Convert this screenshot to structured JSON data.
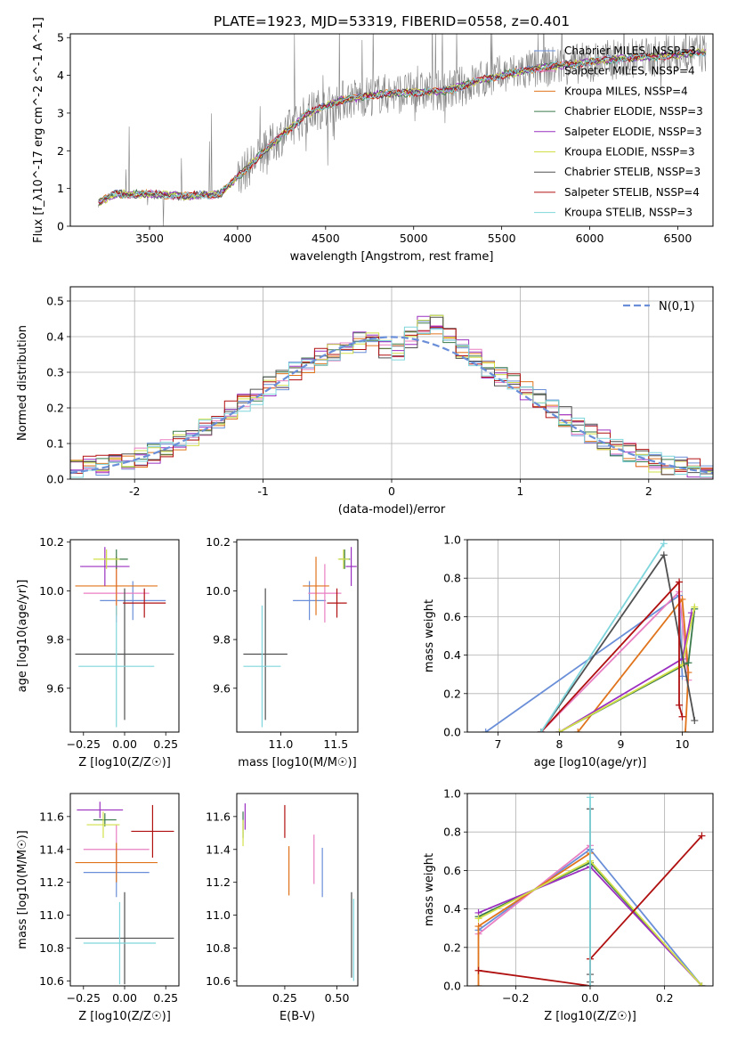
{
  "title": "PLATE=1923, MJD=53319, FIBERID=0558, z=0.401",
  "models": [
    {
      "name": "Chabrier MILES, N$_{SSP}$=3",
      "color": "#6a8fd8"
    },
    {
      "name": "Salpeter MILES, N$_{SSP}$=4",
      "color": "#e87fc2"
    },
    {
      "name": "Kroupa MILES, N$_{SSP}$=4",
      "color": "#e0741c"
    },
    {
      "name": "Chabrier ELODIE, N$_{SSP}$=3",
      "color": "#3a7a4a"
    },
    {
      "name": "Salpeter ELODIE, N$_{SSP}$=3",
      "color": "#9b30c0"
    },
    {
      "name": "Kroupa ELODIE, N$_{SSP}$=3",
      "color": "#d2e048"
    },
    {
      "name": "Chabrier STELIB, N$_{SSP}$=3",
      "color": "#505050"
    },
    {
      "name": "Salpeter STELIB, N$_{SSP}$=4",
      "color": "#b01010"
    },
    {
      "name": "Kroupa STELIB, N$_{SSP}$=3",
      "color": "#7fd6dc"
    }
  ],
  "chart_data": [
    {
      "id": "spectrum",
      "type": "line",
      "xlabel": "wavelength [Angstrom, rest frame]",
      "ylabel": "Flux [f_λ10^-17 erg cm^-2 s^-1 A^-1]",
      "xlim": [
        3050,
        6700
      ],
      "ylim": [
        0,
        5.1
      ],
      "xticks": [
        3500,
        4000,
        4500,
        5000,
        5500,
        6000,
        6500
      ],
      "yticks": [
        0,
        1,
        2,
        3,
        4,
        5
      ],
      "data_color": "#808080",
      "continuum": {
        "x": [
          3200,
          3300,
          3500,
          3700,
          3900,
          4000,
          4200,
          4400,
          4600,
          4800,
          5000,
          5200,
          5400,
          5600,
          5800,
          6000,
          6200,
          6400,
          6600
        ],
        "y": [
          0.6,
          0.85,
          0.85,
          0.8,
          0.85,
          1.3,
          2.2,
          3.0,
          3.35,
          3.5,
          3.55,
          3.6,
          3.9,
          4.1,
          4.25,
          4.35,
          4.45,
          4.5,
          4.6
        ]
      }
    },
    {
      "id": "residuals",
      "type": "line",
      "xlabel": "(data-model)/error",
      "ylabel": "Normed distribution",
      "xlim": [
        -2.5,
        2.5
      ],
      "ylim": [
        0,
        0.54
      ],
      "xticks": [
        -2,
        -1,
        0,
        1,
        2
      ],
      "yticks": [
        0.0,
        0.1,
        0.2,
        0.3,
        0.4,
        0.5
      ],
      "normal_label": "N(0,1)",
      "normal_color": "#6a8fd8",
      "bin_width": 0.1,
      "shape_x": [
        -2.5,
        -2.0,
        -1.5,
        -1.0,
        -0.6,
        -0.3,
        -0.1,
        0.0,
        0.1,
        0.3,
        0.5,
        0.7,
        1.0,
        1.5,
        2.0,
        2.5
      ],
      "shape_y": [
        0.03,
        0.05,
        0.13,
        0.25,
        0.33,
        0.38,
        0.4,
        0.34,
        0.38,
        0.45,
        0.38,
        0.32,
        0.26,
        0.14,
        0.05,
        0.02
      ]
    },
    {
      "id": "age_vs_Z",
      "type": "scatter",
      "xlabel": "Z [log10(Z/Z☉)]",
      "ylabel": "age [log10(age/yr)]",
      "xlim": [
        -0.33,
        0.33
      ],
      "ylim": [
        9.42,
        10.21
      ],
      "xticks": [
        -0.25,
        0.0,
        0.25
      ],
      "yticks": [
        9.6,
        9.8,
        10.0,
        10.2
      ],
      "xticklabels": [
        "−0.25",
        "0.00",
        "0.25"
      ],
      "yticklabels": [
        "9.6",
        "9.8",
        "10.0",
        "10.2"
      ],
      "points": [
        {
          "m": 0,
          "x": 0.05,
          "y": 9.96,
          "ex": 0.2,
          "ey": 0.08
        },
        {
          "m": 1,
          "x": -0.05,
          "y": 9.99,
          "ex": 0.2,
          "ey": 0.12
        },
        {
          "m": 2,
          "x": -0.05,
          "y": 10.02,
          "ex": 0.25,
          "ey": 0.12
        },
        {
          "m": 3,
          "x": -0.05,
          "y": 10.13,
          "ex": 0.07,
          "ey": 0.04
        },
        {
          "m": 4,
          "x": -0.12,
          "y": 10.1,
          "ex": 0.15,
          "ey": 0.08
        },
        {
          "m": 5,
          "x": -0.11,
          "y": 10.13,
          "ex": 0.08,
          "ey": 0.04
        },
        {
          "m": 6,
          "x": 0.0,
          "y": 9.74,
          "ex": 0.3,
          "ey": 0.27
        },
        {
          "m": 7,
          "x": 0.12,
          "y": 9.95,
          "ex": 0.13,
          "ey": 0.06
        },
        {
          "m": 8,
          "x": -0.05,
          "y": 9.69,
          "ex": 0.23,
          "ey": 0.25
        }
      ]
    },
    {
      "id": "age_vs_mass",
      "type": "scatter",
      "xlabel": "mass [log10(M/M☉)]",
      "ylabel": "",
      "xlim": [
        10.6,
        11.7
      ],
      "ylim": [
        9.42,
        10.21
      ],
      "xticks": [
        11.0,
        11.5
      ],
      "yticks": [
        9.6,
        9.8,
        10.0,
        10.2
      ],
      "xticklabels": [
        "11.0",
        "11.5"
      ],
      "yticklabels": [
        "9.6",
        "9.8",
        "10.0",
        "10.2"
      ],
      "points": [
        {
          "m": 0,
          "x": 11.26,
          "y": 9.96,
          "ex": 0.15,
          "ey": 0.08
        },
        {
          "m": 1,
          "x": 11.4,
          "y": 9.99,
          "ex": 0.15,
          "ey": 0.12
        },
        {
          "m": 2,
          "x": 11.32,
          "y": 10.02,
          "ex": 0.12,
          "ey": 0.12
        },
        {
          "m": 3,
          "x": 11.58,
          "y": 10.13,
          "ex": 0.05,
          "ey": 0.04
        },
        {
          "m": 4,
          "x": 11.64,
          "y": 10.1,
          "ex": 0.05,
          "ey": 0.08
        },
        {
          "m": 5,
          "x": 11.57,
          "y": 10.13,
          "ex": 0.05,
          "ey": 0.04
        },
        {
          "m": 6,
          "x": 10.86,
          "y": 9.74,
          "ex": 0.2,
          "ey": 0.27
        },
        {
          "m": 7,
          "x": 11.51,
          "y": 9.95,
          "ex": 0.09,
          "ey": 0.06
        },
        {
          "m": 8,
          "x": 10.83,
          "y": 9.69,
          "ex": 0.17,
          "ey": 0.25
        }
      ]
    },
    {
      "id": "weight_vs_age",
      "type": "line",
      "xlabel": "age [log10(age/yr)]",
      "ylabel": "mass weight",
      "xlim": [
        6.5,
        10.5
      ],
      "ylim": [
        0,
        1.0
      ],
      "xticks": [
        7,
        8,
        9,
        10
      ],
      "yticks": [
        0.0,
        0.2,
        0.4,
        0.6,
        0.8,
        1.0
      ],
      "xticklabels": [
        "7",
        "8",
        "9",
        "10"
      ],
      "yticklabels": [
        "0.0",
        "0.2",
        "0.4",
        "0.6",
        "0.8",
        "1.0"
      ],
      "series": [
        {
          "m": 0,
          "x": [
            6.8,
            9.95,
            10.0
          ],
          "y": [
            0.0,
            0.71,
            0.29
          ]
        },
        {
          "m": 1,
          "x": [
            7.7,
            9.95,
            10.1
          ],
          "y": [
            0.0,
            0.73,
            0.27
          ]
        },
        {
          "m": 2,
          "x": [
            8.3,
            10.0,
            10.1,
            10.05
          ],
          "y": [
            0.0,
            0.69,
            0.31,
            0.0
          ]
        },
        {
          "m": 3,
          "x": [
            8.0,
            10.1,
            10.2
          ],
          "y": [
            0.0,
            0.36,
            0.64
          ]
        },
        {
          "m": 4,
          "x": [
            8.0,
            10.0,
            10.15
          ],
          "y": [
            0.0,
            0.38,
            0.62
          ]
        },
        {
          "m": 5,
          "x": [
            8.0,
            10.0,
            10.2
          ],
          "y": [
            0.0,
            0.35,
            0.65
          ]
        },
        {
          "m": 6,
          "x": [
            7.7,
            9.7,
            10.2
          ],
          "y": [
            0.0,
            0.92,
            0.06
          ]
        },
        {
          "m": 7,
          "x": [
            7.7,
            9.95,
            9.95,
            10.0
          ],
          "y": [
            0.0,
            0.78,
            0.14,
            0.08
          ]
        },
        {
          "m": 8,
          "x": [
            7.7,
            9.7
          ],
          "y": [
            0.0,
            0.98
          ]
        }
      ]
    },
    {
      "id": "mass_vs_Z",
      "type": "scatter",
      "xlabel": "Z [log10(Z/Z☉)]",
      "ylabel": "mass [log10(M/M☉)]",
      "xlim": [
        -0.33,
        0.33
      ],
      "ylim": [
        10.57,
        11.74
      ],
      "xticks": [
        -0.25,
        0.0,
        0.25
      ],
      "yticks": [
        10.6,
        10.8,
        11.0,
        11.2,
        11.4,
        11.6
      ],
      "xticklabels": [
        "−0.25",
        "0.00",
        "0.25"
      ],
      "yticklabels": [
        "10.6",
        "10.8",
        "11.0",
        "11.2",
        "11.4",
        "11.6"
      ],
      "points": [
        {
          "m": 0,
          "x": -0.05,
          "y": 11.26,
          "ex": 0.2,
          "ey": 0.15
        },
        {
          "m": 1,
          "x": -0.05,
          "y": 11.4,
          "ex": 0.2,
          "ey": 0.15
        },
        {
          "m": 2,
          "x": -0.05,
          "y": 11.32,
          "ex": 0.25,
          "ey": 0.12
        },
        {
          "m": 3,
          "x": -0.12,
          "y": 11.58,
          "ex": 0.07,
          "ey": 0.04
        },
        {
          "m": 4,
          "x": -0.15,
          "y": 11.64,
          "ex": 0.14,
          "ey": 0.05
        },
        {
          "m": 5,
          "x": -0.13,
          "y": 11.55,
          "ex": 0.1,
          "ey": 0.08
        },
        {
          "m": 6,
          "x": 0.0,
          "y": 10.86,
          "ex": 0.3,
          "ey": 0.28
        },
        {
          "m": 7,
          "x": 0.17,
          "y": 11.51,
          "ex": 0.13,
          "ey": 0.16
        },
        {
          "m": 8,
          "x": -0.03,
          "y": 10.83,
          "ex": 0.22,
          "ey": 0.25
        }
      ]
    },
    {
      "id": "mass_vs_ebv",
      "type": "scatter",
      "xlabel": "E(B-V)",
      "ylabel": "",
      "xlim": [
        0.02,
        0.6
      ],
      "ylim": [
        10.57,
        11.74
      ],
      "xticks": [
        0.25,
        0.5
      ],
      "yticks": [
        10.6,
        10.8,
        11.0,
        11.2,
        11.4,
        11.6
      ],
      "xticklabels": [
        "0.25",
        "0.50"
      ],
      "yticklabels": [
        "10.6",
        "10.8",
        "11.0",
        "11.2",
        "11.4",
        "11.6"
      ],
      "points": [
        {
          "m": 0,
          "x": 0.43,
          "y": 11.26,
          "ex": 0,
          "ey": 0.15
        },
        {
          "m": 1,
          "x": 0.39,
          "y": 11.34,
          "ex": 0,
          "ey": 0.15
        },
        {
          "m": 2,
          "x": 0.27,
          "y": 11.27,
          "ex": 0,
          "ey": 0.15
        },
        {
          "m": 3,
          "x": 0.05,
          "y": 11.55,
          "ex": 0,
          "ey": 0.08
        },
        {
          "m": 4,
          "x": 0.06,
          "y": 11.6,
          "ex": 0,
          "ey": 0.08
        },
        {
          "m": 5,
          "x": 0.05,
          "y": 11.5,
          "ex": 0,
          "ey": 0.08
        },
        {
          "m": 6,
          "x": 0.57,
          "y": 10.88,
          "ex": 0,
          "ey": 0.26
        },
        {
          "m": 7,
          "x": 0.25,
          "y": 11.57,
          "ex": 0,
          "ey": 0.1
        },
        {
          "m": 8,
          "x": 0.58,
          "y": 10.85,
          "ex": 0,
          "ey": 0.25
        }
      ]
    },
    {
      "id": "weight_vs_Z",
      "type": "line",
      "xlabel": "Z [log10(Z/Z☉)]",
      "ylabel": "mass weight",
      "xlim": [
        -0.33,
        0.33
      ],
      "ylim": [
        0,
        1.0
      ],
      "xticks": [
        -0.2,
        0.0,
        0.2
      ],
      "yticks": [
        0.0,
        0.2,
        0.4,
        0.6,
        0.8,
        1.0
      ],
      "xticklabels": [
        "−0.2",
        "0.0",
        "0.2"
      ],
      "yticklabels": [
        "0.0",
        "0.2",
        "0.4",
        "0.6",
        "0.8",
        "1.0"
      ],
      "series": [
        {
          "m": 0,
          "x": [
            -0.3,
            0.0,
            0.3
          ],
          "y": [
            0.29,
            0.71,
            0.0
          ]
        },
        {
          "m": 1,
          "x": [
            -0.3,
            0.0
          ],
          "y": [
            0.27,
            0.73
          ]
        },
        {
          "m": 2,
          "x": [
            -0.3,
            -0.3,
            0.0
          ],
          "y": [
            0.0,
            0.31,
            0.69
          ]
        },
        {
          "m": 3,
          "x": [
            -0.3,
            0.0,
            0.3
          ],
          "y": [
            0.36,
            0.64,
            0.0
          ]
        },
        {
          "m": 4,
          "x": [
            -0.3,
            0.0,
            0.3
          ],
          "y": [
            0.38,
            0.62,
            0.0
          ]
        },
        {
          "m": 5,
          "x": [
            -0.3,
            0.0,
            0.3
          ],
          "y": [
            0.35,
            0.65,
            0.0
          ]
        },
        {
          "m": 6,
          "x": [
            0.0,
            0.0,
            0.0
          ],
          "y": [
            0.92,
            0.06,
            0.02
          ]
        },
        {
          "m": 7,
          "x": [
            -0.3,
            0.0,
            0.0,
            0.3
          ],
          "y": [
            0.08,
            0.0,
            0.14,
            0.78
          ]
        },
        {
          "m": 8,
          "x": [
            0.0,
            0.0
          ],
          "y": [
            0.98,
            0.0
          ]
        }
      ]
    }
  ]
}
